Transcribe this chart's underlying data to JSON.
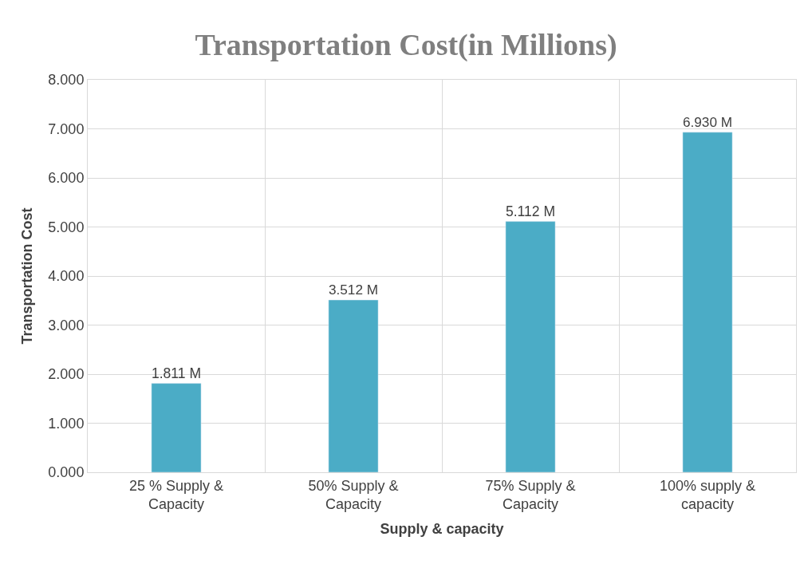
{
  "chart_data": {
    "type": "bar",
    "title": "Transportation Cost(in Millions)",
    "xlabel": "Supply & capacity",
    "ylabel": "Transportation Cost",
    "categories": [
      "25 % Supply & Capacity",
      "50% Supply & Capacity",
      "75% Supply & Capacity",
      "100% supply & capacity"
    ],
    "values": [
      1.811,
      3.512,
      5.112,
      6.93
    ],
    "value_labels": [
      "1.811 M",
      "3.512 M",
      "5.112 M",
      "6.930 M"
    ],
    "color": "#4bacc6",
    "ylim": [
      0,
      8
    ],
    "yticks": [
      {
        "value": 0,
        "label": "0.000"
      },
      {
        "value": 1,
        "label": "1.000"
      },
      {
        "value": 2,
        "label": "2.000"
      },
      {
        "value": 3,
        "label": "3.000"
      },
      {
        "value": 4,
        "label": "4.000"
      },
      {
        "value": 5,
        "label": "5.000"
      },
      {
        "value": 6,
        "label": "6.000"
      },
      {
        "value": 7,
        "label": "7.000"
      },
      {
        "value": 8,
        "label": "8.000"
      }
    ],
    "grid": true
  }
}
